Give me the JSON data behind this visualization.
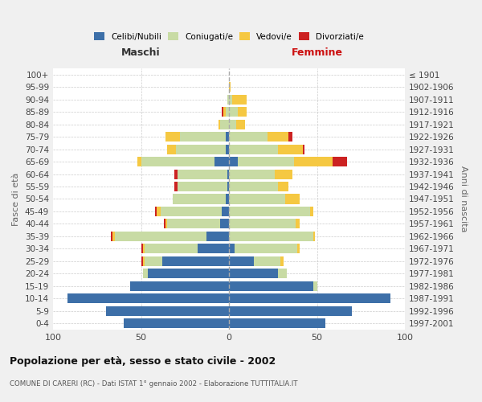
{
  "age_groups": [
    "0-4",
    "5-9",
    "10-14",
    "15-19",
    "20-24",
    "25-29",
    "30-34",
    "35-39",
    "40-44",
    "45-49",
    "50-54",
    "55-59",
    "60-64",
    "65-69",
    "70-74",
    "75-79",
    "80-84",
    "85-89",
    "90-94",
    "95-99",
    "100+"
  ],
  "birth_years": [
    "1997-2001",
    "1992-1996",
    "1987-1991",
    "1982-1986",
    "1977-1981",
    "1972-1976",
    "1967-1971",
    "1962-1966",
    "1957-1961",
    "1952-1956",
    "1947-1951",
    "1942-1946",
    "1937-1941",
    "1932-1936",
    "1927-1931",
    "1922-1926",
    "1917-1921",
    "1912-1916",
    "1907-1911",
    "1902-1906",
    "≤ 1901"
  ],
  "males": {
    "celibi": [
      60,
      70,
      92,
      56,
      46,
      38,
      18,
      13,
      5,
      4,
      2,
      1,
      1,
      8,
      2,
      2,
      0,
      0,
      0,
      0,
      0
    ],
    "coniugati": [
      0,
      0,
      0,
      0,
      3,
      10,
      30,
      52,
      30,
      35,
      30,
      28,
      28,
      42,
      28,
      26,
      5,
      2,
      1,
      0,
      0
    ],
    "vedovi": [
      0,
      0,
      0,
      0,
      0,
      1,
      1,
      1,
      1,
      2,
      0,
      0,
      0,
      2,
      5,
      8,
      1,
      1,
      0,
      0,
      0
    ],
    "divorziati": [
      0,
      0,
      0,
      0,
      0,
      1,
      1,
      1,
      1,
      1,
      0,
      2,
      2,
      0,
      0,
      0,
      0,
      1,
      0,
      0,
      0
    ]
  },
  "females": {
    "nubili": [
      55,
      70,
      92,
      48,
      28,
      14,
      3,
      0,
      0,
      0,
      0,
      0,
      0,
      5,
      0,
      0,
      0,
      0,
      0,
      0,
      0
    ],
    "coniugate": [
      0,
      0,
      0,
      2,
      5,
      15,
      36,
      48,
      38,
      46,
      32,
      28,
      26,
      32,
      28,
      22,
      4,
      5,
      2,
      0,
      0
    ],
    "vedove": [
      0,
      0,
      0,
      0,
      0,
      2,
      1,
      1,
      2,
      2,
      8,
      6,
      10,
      22,
      14,
      12,
      5,
      5,
      8,
      1,
      0
    ],
    "divorziate": [
      0,
      0,
      0,
      0,
      0,
      0,
      0,
      0,
      0,
      0,
      0,
      0,
      0,
      8,
      1,
      2,
      0,
      0,
      0,
      0,
      0
    ]
  },
  "colors": {
    "celibi": "#3d6fa8",
    "coniugati": "#c8dba4",
    "vedovi": "#f5c842",
    "divorziati": "#cc2222"
  },
  "xlim": 100,
  "title": "Popolazione per età, sesso e stato civile - 2002",
  "subtitle": "COMUNE DI CARERI (RC) - Dati ISTAT 1° gennaio 2002 - Elaborazione TUTTITALIA.IT",
  "xlabel_left": "Maschi",
  "xlabel_right": "Femmine",
  "ylabel_left": "Fasce di età",
  "ylabel_right": "Anni di nascita",
  "bg_color": "#f0f0f0",
  "plot_bg": "#ffffff"
}
